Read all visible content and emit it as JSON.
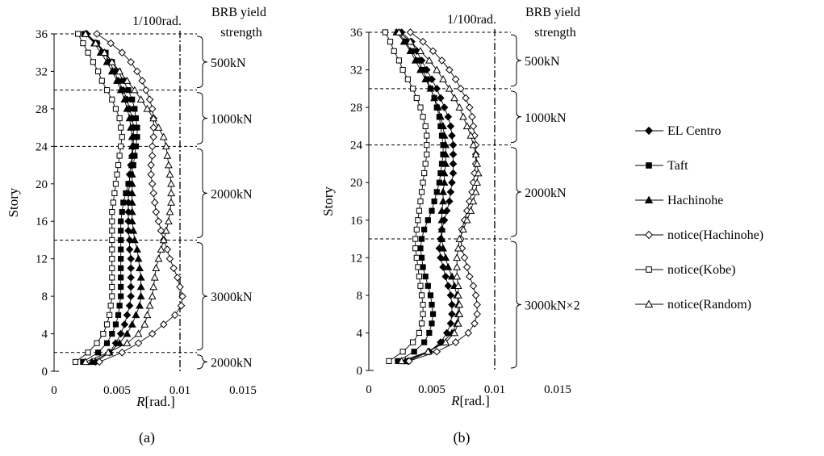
{
  "figure": {
    "legend": [
      {
        "name": "EL Centro",
        "marker": "diamond",
        "fill": "#000000"
      },
      {
        "name": "Taft",
        "marker": "square",
        "fill": "#000000"
      },
      {
        "name": "Hachinohe",
        "marker": "triangle",
        "fill": "#000000"
      },
      {
        "name": "notice(Hachinohe)",
        "marker": "diamond",
        "fill": "#ffffff"
      },
      {
        "name": "notice(Kobe)",
        "marker": "square",
        "fill": "#ffffff"
      },
      {
        "name": "notice(Random)",
        "marker": "triangle",
        "fill": "#ffffff"
      }
    ]
  },
  "chart_data": [
    {
      "type": "line",
      "caption": "(a)",
      "xlabel": "R[rad.]",
      "ylabel": "Story",
      "xlim": [
        0,
        0.015
      ],
      "ylim": [
        0,
        36
      ],
      "xticks": [
        "0",
        "0.005",
        "0.01",
        "0.015"
      ],
      "yticks": [
        "0",
        "4",
        "8",
        "12",
        "16",
        "20",
        "24",
        "28",
        "32",
        "36"
      ],
      "limit_line": {
        "x": 0.01,
        "label": "1/100rad."
      },
      "strength_title": [
        "BRB yield",
        "strength"
      ],
      "zone_boundaries": [
        2,
        14,
        24,
        30
      ],
      "zones": [
        {
          "from": 36,
          "to": 30,
          "label": "500kN"
        },
        {
          "from": 30,
          "to": 24,
          "label": "1000kN"
        },
        {
          "from": 24,
          "to": 14,
          "label": "2000kN"
        },
        {
          "from": 14,
          "to": 2,
          "label": "3000kN"
        },
        {
          "from": 2,
          "to": 0,
          "label": "2000kN"
        }
      ],
      "stories": [
        1,
        2,
        3,
        4,
        5,
        6,
        7,
        8,
        9,
        10,
        11,
        12,
        13,
        14,
        15,
        16,
        17,
        18,
        19,
        20,
        21,
        22,
        23,
        24,
        25,
        26,
        27,
        28,
        29,
        30,
        31,
        32,
        33,
        34,
        35,
        36
      ],
      "series": [
        {
          "name": "EL Centro",
          "values": [
            0.0033,
            0.0044,
            0.0049,
            0.0053,
            0.0056,
            0.0058,
            0.006,
            0.0061,
            0.0061,
            0.0061,
            0.0061,
            0.0061,
            0.006,
            0.006,
            0.0059,
            0.0059,
            0.0059,
            0.0059,
            0.0059,
            0.006,
            0.006,
            0.0061,
            0.0062,
            0.0063,
            0.0063,
            0.0063,
            0.0062,
            0.006,
            0.0058,
            0.0055,
            0.0051,
            0.0048,
            0.0044,
            0.004,
            0.0034,
            0.0026
          ]
        },
        {
          "name": "Taft",
          "values": [
            0.0023,
            0.0035,
            0.0042,
            0.0046,
            0.0049,
            0.0051,
            0.0052,
            0.0053,
            0.0053,
            0.0053,
            0.0053,
            0.0053,
            0.0053,
            0.0053,
            0.0053,
            0.0053,
            0.0054,
            0.0055,
            0.0057,
            0.0059,
            0.0061,
            0.0063,
            0.0064,
            0.0065,
            0.0066,
            0.0066,
            0.0065,
            0.0064,
            0.0062,
            0.0059,
            0.0055,
            0.0051,
            0.0046,
            0.0041,
            0.0034,
            0.0024
          ]
        },
        {
          "name": "Hachinohe",
          "values": [
            0.003,
            0.0044,
            0.0052,
            0.0058,
            0.0062,
            0.0065,
            0.0068,
            0.0069,
            0.0069,
            0.0069,
            0.0068,
            0.0067,
            0.0066,
            0.0064,
            0.0063,
            0.0062,
            0.0062,
            0.0062,
            0.0062,
            0.0062,
            0.0062,
            0.0062,
            0.0062,
            0.0062,
            0.0062,
            0.0061,
            0.006,
            0.0058,
            0.0056,
            0.0053,
            0.005,
            0.0046,
            0.0042,
            0.0037,
            0.0032,
            0.0025
          ]
        },
        {
          "name": "notice(Hachinohe)",
          "values": [
            0.0036,
            0.0054,
            0.0067,
            0.0078,
            0.0087,
            0.0096,
            0.0101,
            0.0102,
            0.01,
            0.0098,
            0.0095,
            0.0092,
            0.009,
            0.0087,
            0.0085,
            0.0083,
            0.0081,
            0.008,
            0.0079,
            0.0078,
            0.0077,
            0.0077,
            0.0078,
            0.0078,
            0.0079,
            0.0079,
            0.0079,
            0.0078,
            0.0076,
            0.0073,
            0.007,
            0.0066,
            0.0061,
            0.0054,
            0.0045,
            0.0034
          ]
        },
        {
          "name": "notice(Kobe)",
          "values": [
            0.0017,
            0.0027,
            0.0034,
            0.0039,
            0.0042,
            0.0044,
            0.0045,
            0.0046,
            0.0046,
            0.0046,
            0.0046,
            0.0046,
            0.0046,
            0.0046,
            0.0046,
            0.0046,
            0.0046,
            0.0047,
            0.0048,
            0.0049,
            0.005,
            0.0051,
            0.0052,
            0.0053,
            0.0054,
            0.0053,
            0.0052,
            0.0049,
            0.0046,
            0.0042,
            0.0038,
            0.0035,
            0.0031,
            0.0027,
            0.0023,
            0.0019
          ]
        },
        {
          "name": "notice(Random)",
          "values": [
            0.0025,
            0.0043,
            0.0058,
            0.0067,
            0.0072,
            0.0074,
            0.0076,
            0.0078,
            0.0079,
            0.008,
            0.0081,
            0.0083,
            0.0085,
            0.0087,
            0.0089,
            0.0091,
            0.0092,
            0.0093,
            0.0093,
            0.0093,
            0.0092,
            0.0091,
            0.009,
            0.0089,
            0.0087,
            0.0083,
            0.0079,
            0.0074,
            0.0069,
            0.0064,
            0.0058,
            0.0052,
            0.0046,
            0.004,
            0.0033,
            0.0025
          ]
        }
      ]
    },
    {
      "type": "line",
      "caption": "(b)",
      "xlabel": "R[rad.]",
      "ylabel": "Story",
      "xlim": [
        0,
        0.015
      ],
      "ylim": [
        0,
        36
      ],
      "xticks": [
        "0",
        "0.005",
        "0.01",
        "0.015"
      ],
      "yticks": [
        "0",
        "4",
        "8",
        "12",
        "16",
        "20",
        "24",
        "28",
        "32",
        "36"
      ],
      "limit_line": {
        "x": 0.01,
        "label": "1/100rad."
      },
      "strength_title": [
        "BRB yield",
        "strength"
      ],
      "zone_boundaries": [
        14,
        24,
        30
      ],
      "zones": [
        {
          "from": 36,
          "to": 30,
          "label": "500kN"
        },
        {
          "from": 30,
          "to": 24,
          "label": "1000kN"
        },
        {
          "from": 24,
          "to": 14,
          "label": "2000kN"
        },
        {
          "from": 14,
          "to": 0,
          "label": "3000kN×2"
        }
      ],
      "stories": [
        1,
        2,
        3,
        4,
        5,
        6,
        7,
        8,
        9,
        10,
        11,
        12,
        13,
        14,
        15,
        16,
        17,
        18,
        19,
        20,
        21,
        22,
        23,
        24,
        25,
        26,
        27,
        28,
        29,
        30,
        31,
        32,
        33,
        34,
        35,
        36
      ],
      "series": [
        {
          "name": "EL Centro",
          "values": [
            0.0031,
            0.0048,
            0.0057,
            0.0062,
            0.0065,
            0.0066,
            0.0066,
            0.0065,
            0.0063,
            0.0061,
            0.0059,
            0.0057,
            0.0056,
            0.0057,
            0.0058,
            0.006,
            0.0062,
            0.0064,
            0.0065,
            0.0066,
            0.0067,
            0.0067,
            0.0067,
            0.0067,
            0.0066,
            0.0065,
            0.0063,
            0.006,
            0.0057,
            0.0054,
            0.005,
            0.0046,
            0.0042,
            0.0038,
            0.0034,
            0.0026
          ]
        },
        {
          "name": "Taft",
          "values": [
            0.0023,
            0.0036,
            0.0044,
            0.0048,
            0.005,
            0.0051,
            0.005,
            0.0049,
            0.0047,
            0.0045,
            0.0043,
            0.0042,
            0.0041,
            0.0042,
            0.0044,
            0.0047,
            0.005,
            0.0052,
            0.0054,
            0.0056,
            0.0057,
            0.0058,
            0.0059,
            0.0059,
            0.0058,
            0.0057,
            0.0056,
            0.0054,
            0.0052,
            0.0049,
            0.0046,
            0.0043,
            0.0039,
            0.0034,
            0.0029,
            0.0023
          ]
        },
        {
          "name": "Hachinohe",
          "values": [
            0.0029,
            0.0047,
            0.0059,
            0.0066,
            0.007,
            0.0071,
            0.0071,
            0.007,
            0.0068,
            0.0066,
            0.0063,
            0.0061,
            0.0059,
            0.0058,
            0.0058,
            0.0058,
            0.0058,
            0.0059,
            0.0059,
            0.006,
            0.006,
            0.0061,
            0.0061,
            0.0061,
            0.006,
            0.0059,
            0.0057,
            0.0055,
            0.0052,
            0.0049,
            0.0045,
            0.0041,
            0.0037,
            0.0033,
            0.0028,
            0.0022
          ]
        },
        {
          "name": "notice(Hachinohe)",
          "values": [
            0.0032,
            0.0054,
            0.0069,
            0.0079,
            0.0084,
            0.0086,
            0.0086,
            0.0085,
            0.0083,
            0.008,
            0.0078,
            0.0076,
            0.0074,
            0.0073,
            0.0074,
            0.0076,
            0.0078,
            0.008,
            0.0082,
            0.0083,
            0.0084,
            0.0085,
            0.0085,
            0.0085,
            0.0084,
            0.0083,
            0.0082,
            0.008,
            0.0077,
            0.0073,
            0.0069,
            0.0064,
            0.0058,
            0.0051,
            0.0043,
            0.0033
          ]
        },
        {
          "name": "notice(Kobe)",
          "values": [
            0.0016,
            0.0027,
            0.0035,
            0.004,
            0.0042,
            0.0043,
            0.0043,
            0.0042,
            0.0041,
            0.004,
            0.0039,
            0.0038,
            0.0037,
            0.0037,
            0.0038,
            0.0039,
            0.004,
            0.0041,
            0.0042,
            0.0043,
            0.0044,
            0.0045,
            0.0046,
            0.0046,
            0.0046,
            0.0045,
            0.0043,
            0.0041,
            0.0038,
            0.0035,
            0.0031,
            0.0027,
            0.0024,
            0.002,
            0.0017,
            0.0013
          ]
        },
        {
          "name": "notice(Random)",
          "values": [
            0.0026,
            0.0047,
            0.0061,
            0.0068,
            0.0071,
            0.0072,
            0.0072,
            0.0071,
            0.0071,
            0.007,
            0.007,
            0.007,
            0.0071,
            0.0072,
            0.0075,
            0.0078,
            0.0081,
            0.0083,
            0.0085,
            0.0086,
            0.0087,
            0.0086,
            0.0085,
            0.0083,
            0.0081,
            0.0078,
            0.0075,
            0.0072,
            0.0068,
            0.0064,
            0.0059,
            0.0054,
            0.0048,
            0.0041,
            0.0033,
            0.0024
          ]
        }
      ]
    }
  ]
}
